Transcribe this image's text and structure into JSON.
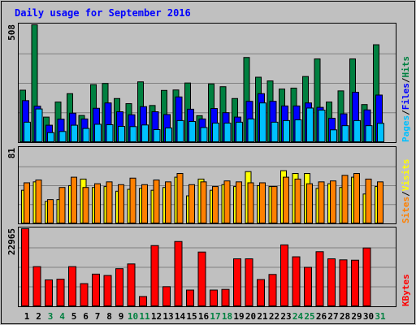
{
  "chart_data": {
    "type": "bar",
    "title": "Daily usage for September 2016",
    "categories": [
      "1",
      "2",
      "3",
      "4",
      "5",
      "6",
      "7",
      "8",
      "9",
      "10",
      "11",
      "12",
      "13",
      "14",
      "15",
      "16",
      "17",
      "18",
      "19",
      "20",
      "21",
      "22",
      "23",
      "24",
      "25",
      "26",
      "27",
      "28",
      "29",
      "30",
      "31"
    ],
    "weekend_days": [
      "3",
      "4",
      "10",
      "11",
      "17",
      "18",
      "24",
      "25",
      "31"
    ],
    "panels": [
      {
        "id": "top",
        "max_label": "508",
        "ymax": 508,
        "right_labels": [
          "Pages",
          "/",
          "Files",
          "/",
          "Hits"
        ],
        "series": [
          {
            "name": "Hits",
            "color": "#008040",
            "values": [
              226,
              508,
              110,
              175,
              211,
              117,
              250,
              255,
              190,
              168,
              262,
              160,
              225,
              227,
              257,
              116,
              253,
              241,
              190,
              367,
              282,
              266,
              231,
              235,
              285,
              361,
              175,
              223,
              361,
              164,
              422
            ]
          },
          {
            "name": "Files",
            "color": "#0000ff",
            "values": [
              181,
              157,
              75,
              101,
              127,
              102,
              148,
              171,
              133,
              120,
              155,
              133,
              121,
              197,
              144,
              102,
              147,
              129,
              110,
              178,
              211,
              178,
              158,
              158,
              171,
              152,
              105,
              124,
              217,
              141,
              205
            ]
          },
          {
            "name": "Pages",
            "color": "#00c0ff",
            "values": [
              88,
              145,
              43,
              48,
              75,
              61,
              79,
              77,
              70,
              69,
              76,
              56,
              63,
              95,
              91,
              65,
              84,
              84,
              88,
              102,
              171,
              88,
              95,
              98,
              149,
              140,
              55,
              73,
              95,
              73,
              83
            ]
          }
        ]
      },
      {
        "id": "mid",
        "max_label": "81",
        "ymax": 81,
        "right_labels": [
          "Sites",
          "/",
          "Visits"
        ],
        "series": [
          {
            "name": "Visits",
            "color": "#ffff00",
            "values": [
              36,
              45,
              24,
              26,
              41,
              48,
              39,
              40,
              35,
              37,
              38,
              36,
              39,
              50,
              30,
              48,
              36,
              42,
              40,
              56,
              41,
              40,
              57,
              54,
              54,
              38,
              43,
              39,
              50,
              32,
              40
            ]
          },
          {
            "name": "Sites",
            "color": "#ff8000",
            "values": [
              44,
              47,
              26,
              39,
              50,
              39,
              43,
              45,
              42,
              49,
              42,
              47,
              45,
              54,
              42,
              45,
              40,
              46,
              45,
              44,
              44,
              40,
              50,
              48,
              43,
              45,
              46,
              52,
              54,
              48,
              45
            ]
          }
        ]
      },
      {
        "id": "bottom",
        "max_label": "22965",
        "ymax": 22965,
        "right_labels": [
          "KBytes"
        ],
        "series": [
          {
            "name": "KBytes",
            "color": "#ff0000",
            "values": [
              22965,
              11800,
              7900,
              8100,
              11800,
              6800,
              9600,
              9200,
              11200,
              12600,
              3000,
              18000,
              5900,
              19200,
              4900,
              16100,
              4900,
              5100,
              14100,
              14100,
              8000,
              9500,
              18200,
              14700,
              11600,
              16200,
              14100,
              13800,
              13700,
              17300,
              0
            ]
          }
        ]
      }
    ]
  }
}
